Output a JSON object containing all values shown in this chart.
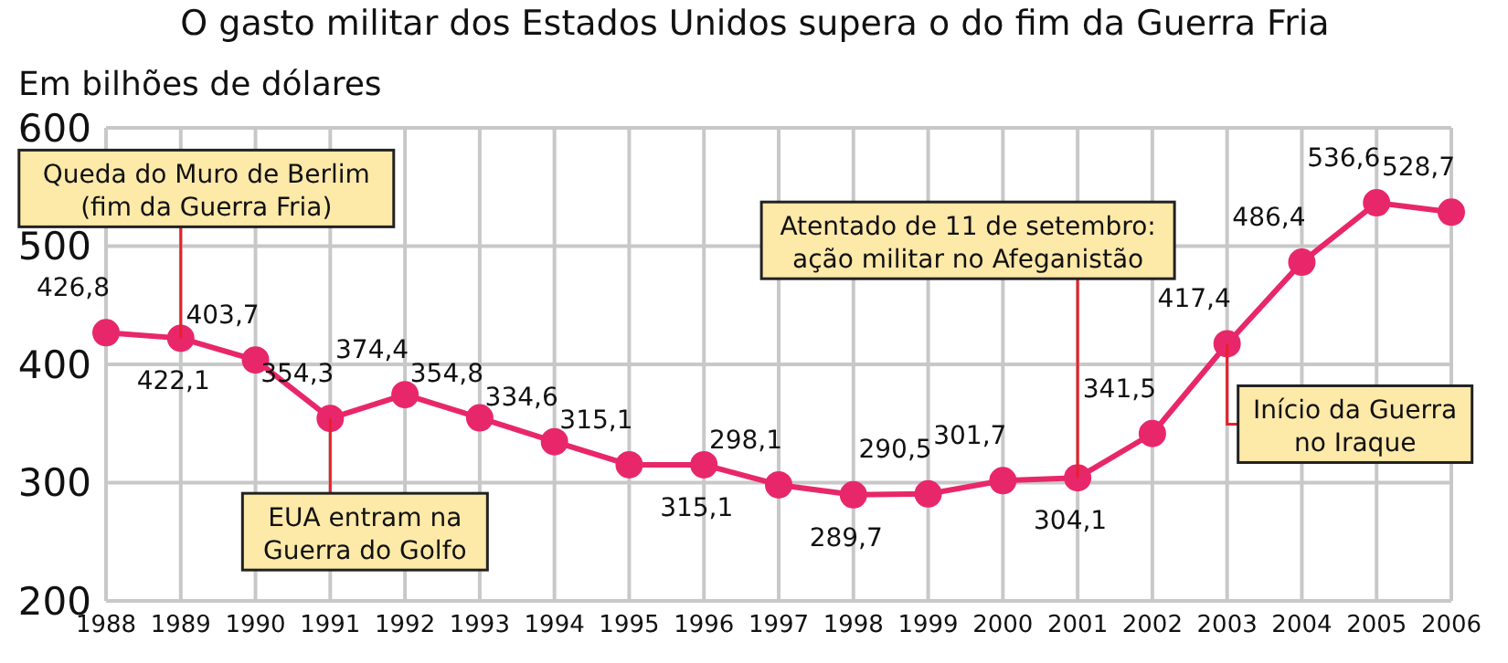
{
  "chart_data": {
    "type": "line",
    "title": "O gasto militar dos Estados Unidos supera o do fim da Guerra Fria",
    "ylabel": "Em bilhões de dólares",
    "categories": [
      "1988",
      "1989",
      "1990",
      "1991",
      "1992",
      "1993",
      "1994",
      "1995",
      "1996",
      "1997",
      "1998",
      "1999",
      "2000",
      "2001",
      "2002",
      "2003",
      "2004",
      "2005",
      "2006"
    ],
    "series": [
      {
        "color": "#e8276a",
        "values": [
          426.8,
          422.1,
          403.7,
          354.3,
          374.4,
          354.8,
          334.6,
          315.1,
          315.1,
          298.1,
          289.7,
          290.5,
          301.7,
          304.1,
          341.5,
          417.4,
          486.4,
          536.6,
          528.7
        ]
      }
    ],
    "value_labels": [
      "426,8",
      "422,1",
      "403,7",
      "354,3",
      "374,4",
      "354,8",
      "334,6",
      "315,1",
      "315,1",
      "298,1",
      "289,7",
      "290,5",
      "301,7",
      "304,1",
      "341,5",
      "417,4",
      "486,4",
      "536,6",
      "528,7"
    ],
    "ylim": [
      200,
      600
    ],
    "yticks": [
      200,
      300,
      400,
      500,
      600
    ],
    "grid": true,
    "marker": "circle",
    "line_style": "solid",
    "annotations": [
      {
        "text": "Queda do Muro de Berlim\n(fim da Guerra Fria)",
        "x": "1989",
        "y": 422.1
      },
      {
        "text": "EUA entram na\nGuerra do Golfo",
        "x": "1991",
        "y": 354.3
      },
      {
        "text": "Atentado de 11 de setembro:\nação militar no Afeganistão",
        "x": "2001",
        "y": 304.1
      },
      {
        "text": "Início da Guerra\nno Iraque",
        "x": "2003",
        "y": 417.4
      }
    ]
  }
}
